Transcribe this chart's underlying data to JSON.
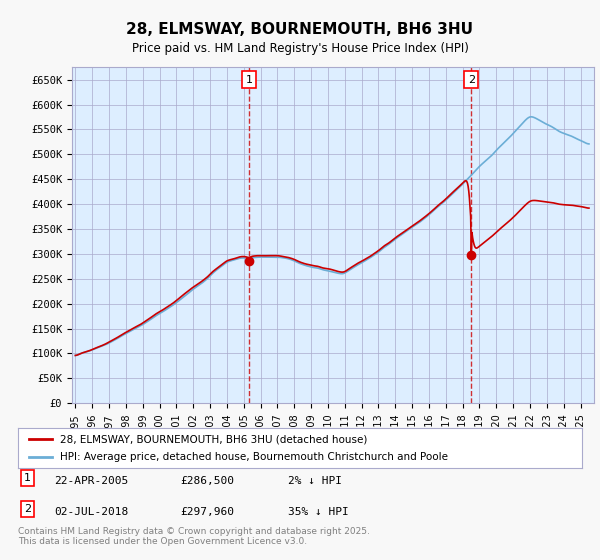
{
  "title": "28, ELMSWAY, BOURNEMOUTH, BH6 3HU",
  "subtitle": "Price paid vs. HM Land Registry's House Price Index (HPI)",
  "legend_line1": "28, ELMSWAY, BOURNEMOUTH, BH6 3HU (detached house)",
  "legend_line2": "HPI: Average price, detached house, Bournemouth Christchurch and Poole",
  "annotation1_label": "1",
  "annotation1_date": "22-APR-2005",
  "annotation1_price": "£286,500",
  "annotation1_hpi": "2% ↓ HPI",
  "annotation2_label": "2",
  "annotation2_date": "02-JUL-2018",
  "annotation2_price": "£297,960",
  "annotation2_hpi": "35% ↓ HPI",
  "footer": "Contains HM Land Registry data © Crown copyright and database right 2025.\nThis data is licensed under the Open Government Licence v3.0.",
  "hpi_color": "#6baed6",
  "price_color": "#cc0000",
  "bg_color": "#ddeeff",
  "plot_bg": "#ffffff",
  "grid_color": "#aaaacc",
  "ylim": [
    0,
    675000
  ],
  "yticks": [
    0,
    50000,
    100000,
    150000,
    200000,
    250000,
    300000,
    350000,
    400000,
    450000,
    500000,
    550000,
    600000,
    650000
  ],
  "ytick_labels": [
    "£0",
    "£50K",
    "£100K",
    "£150K",
    "£200K",
    "£250K",
    "£300K",
    "£350K",
    "£400K",
    "£450K",
    "£500K",
    "£550K",
    "£600K",
    "£650K"
  ],
  "sale1_year": 2005.31,
  "sale1_value": 286500,
  "sale2_year": 2018.5,
  "sale2_value": 297960
}
